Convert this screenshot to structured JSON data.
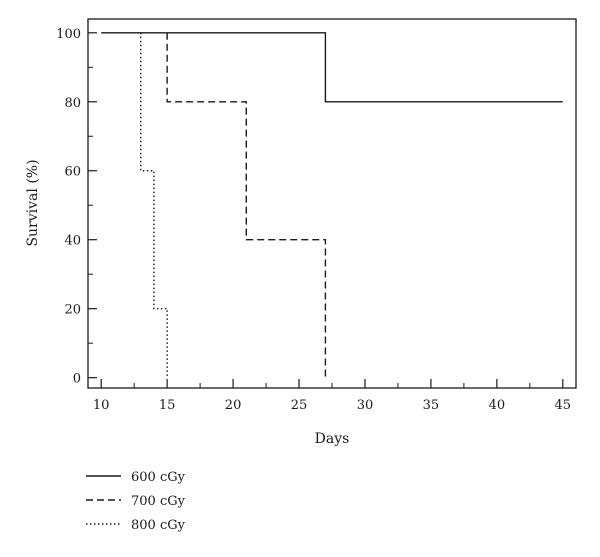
{
  "chart_data": {
    "type": "line",
    "xlabel": "Days",
    "ylabel": "Survival (%)",
    "xlim": [
      9,
      46
    ],
    "ylim": [
      -3,
      104
    ],
    "xticks": [
      10,
      15,
      20,
      25,
      30,
      35,
      40,
      45
    ],
    "yticks": [
      0,
      20,
      40,
      60,
      80,
      100
    ],
    "grid": false,
    "legend_position": "bottom-left",
    "step": true,
    "series": [
      {
        "name": "600 cGy",
        "line_style": "solid",
        "color": "#1a1a1a",
        "x": [
          10,
          27,
          27,
          45
        ],
        "y": [
          100,
          100,
          80,
          80
        ]
      },
      {
        "name": "700 cGy",
        "line_style": "dashed",
        "color": "#1a1a1a",
        "x": [
          15,
          15,
          21,
          21,
          27,
          27
        ],
        "y": [
          100,
          80,
          80,
          40,
          40,
          0
        ]
      },
      {
        "name": "800 cGy",
        "line_style": "dotted",
        "color": "#1a1a1a",
        "x": [
          13,
          13,
          14,
          14,
          15,
          15
        ],
        "y": [
          100,
          60,
          60,
          20,
          20,
          0
        ]
      }
    ]
  }
}
